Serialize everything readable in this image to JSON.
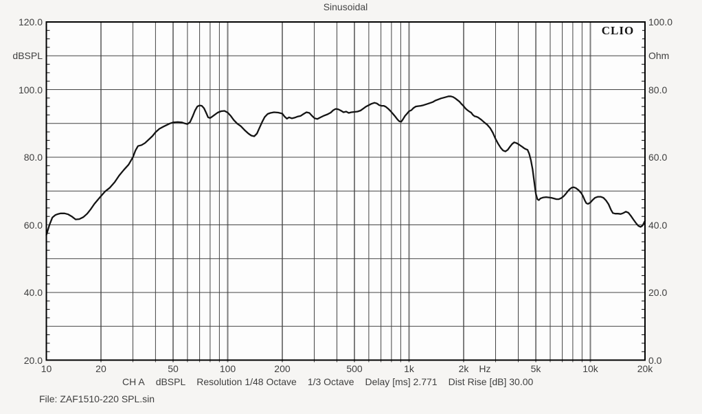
{
  "title": "Sinusoidal",
  "logo_text": "CLIO",
  "footer": {
    "segments": [
      "CH A",
      "dBSPL",
      "Resolution 1/48 Octave",
      "1/3 Octave",
      "Delay [ms] 2.771",
      "Dist Rise [dB] 30.00"
    ],
    "file_line": "File: ZAF1510-220 SPL.sin"
  },
  "chart_data": {
    "type": "line",
    "title": "Sinusoidal",
    "x_scale": "log",
    "x_range_hz": [
      10,
      20000
    ],
    "grid": true,
    "left_axis": {
      "label": "dBSPL",
      "min": 20,
      "max": 120,
      "tick_labels": [
        {
          "text": "120.0",
          "value": 120
        },
        {
          "text": "100.0",
          "value": 100
        },
        {
          "text": "80.0",
          "value": 80
        },
        {
          "text": "60.0",
          "value": 60
        },
        {
          "text": "40.0",
          "value": 40
        },
        {
          "text": "20.0",
          "value": 20
        }
      ],
      "unit_label_at_value": 110
    },
    "right_axis": {
      "label": "Ohm",
      "min": 0,
      "max": 100,
      "tick_labels": [
        {
          "text": "100.0",
          "value": 100
        },
        {
          "text": "80.0",
          "value": 80
        },
        {
          "text": "60.0",
          "value": 60
        },
        {
          "text": "40.0",
          "value": 40
        },
        {
          "text": "20.0",
          "value": 20
        },
        {
          "text": "0.0",
          "value": 0
        }
      ],
      "unit_label_at_value": 90
    },
    "x_axis_labels": [
      {
        "text": "10",
        "f": 10
      },
      {
        "text": "20",
        "f": 20
      },
      {
        "text": "50",
        "f": 50
      },
      {
        "text": "100",
        "f": 100
      },
      {
        "text": "200",
        "f": 200
      },
      {
        "text": "500",
        "f": 500
      },
      {
        "text": "1k",
        "f": 1000
      },
      {
        "text": "2k",
        "f": 2000
      },
      {
        "text": "Hz",
        "f": 2620
      },
      {
        "text": "5k",
        "f": 5000
      },
      {
        "text": "10k",
        "f": 10000
      },
      {
        "text": "20k",
        "f": 20000
      }
    ],
    "grid_major_freqs": [
      20,
      50,
      100,
      200,
      500,
      1000,
      2000,
      5000,
      10000
    ],
    "grid_minor_freqs": [
      30,
      40,
      60,
      70,
      80,
      90,
      300,
      400,
      600,
      700,
      800,
      900,
      3000,
      4000,
      6000,
      7000,
      8000,
      9000
    ],
    "grid_h_lines_db": [
      110,
      100,
      90,
      80,
      70,
      60,
      50,
      40,
      30
    ],
    "minor_tick_step_db": 2.5,
    "colors": {
      "curve": "#141414",
      "grid_major": "#7d7d7d",
      "grid_minor": "#424242",
      "border": "#000000",
      "plot_fill": "#fdfdfd",
      "text": "#3e3e3e"
    },
    "series": [
      {
        "name": "CH A dBSPL",
        "points": [
          [
            10,
            57.0
          ],
          [
            10.4,
            60.0
          ],
          [
            10.8,
            62.2
          ],
          [
            11.2,
            62.9
          ],
          [
            11.6,
            63.2
          ],
          [
            12,
            63.4
          ],
          [
            12.6,
            63.4
          ],
          [
            13.2,
            63.1
          ],
          [
            13.8,
            62.5
          ],
          [
            14.5,
            61.6
          ],
          [
            15.2,
            61.7
          ],
          [
            16,
            62.3
          ],
          [
            16.8,
            63.3
          ],
          [
            17.6,
            64.7
          ],
          [
            18.4,
            66.2
          ],
          [
            19.2,
            67.4
          ],
          [
            20,
            68.5
          ],
          [
            21,
            69.8
          ],
          [
            22.4,
            71.0
          ],
          [
            23.8,
            72.6
          ],
          [
            25.2,
            74.6
          ],
          [
            26.8,
            76.3
          ],
          [
            28.4,
            77.8
          ],
          [
            30,
            80.0
          ],
          [
            31,
            82.0
          ],
          [
            32,
            83.3
          ],
          [
            33.5,
            83.6
          ],
          [
            35,
            84.2
          ],
          [
            37,
            85.4
          ],
          [
            38.5,
            86.3
          ],
          [
            40,
            87.4
          ],
          [
            42,
            88.4
          ],
          [
            44,
            89.0
          ],
          [
            46,
            89.5
          ],
          [
            48,
            90.0
          ],
          [
            50,
            90.3
          ],
          [
            53,
            90.4
          ],
          [
            56,
            90.3
          ],
          [
            58,
            90.0
          ],
          [
            60,
            89.8
          ],
          [
            62,
            90.4
          ],
          [
            64,
            92.0
          ],
          [
            66,
            93.8
          ],
          [
            68,
            95.0
          ],
          [
            70,
            95.3
          ],
          [
            72,
            95.2
          ],
          [
            74,
            94.5
          ],
          [
            76,
            93.2
          ],
          [
            78,
            91.8
          ],
          [
            80,
            91.6
          ],
          [
            82,
            92.0
          ],
          [
            85,
            92.6
          ],
          [
            88,
            93.2
          ],
          [
            92,
            93.6
          ],
          [
            96,
            93.7
          ],
          [
            100,
            93.2
          ],
          [
            104,
            92.2
          ],
          [
            108,
            91.0
          ],
          [
            113,
            89.9
          ],
          [
            118,
            89.2
          ],
          [
            124,
            88.0
          ],
          [
            130,
            87.0
          ],
          [
            135,
            86.4
          ],
          [
            140,
            86.2
          ],
          [
            145,
            87.0
          ],
          [
            150,
            88.8
          ],
          [
            155,
            90.5
          ],
          [
            160,
            91.9
          ],
          [
            166,
            92.8
          ],
          [
            172,
            93.1
          ],
          [
            180,
            93.3
          ],
          [
            190,
            93.2
          ],
          [
            200,
            92.9
          ],
          [
            206,
            92.0
          ],
          [
            212,
            91.4
          ],
          [
            218,
            91.8
          ],
          [
            226,
            91.5
          ],
          [
            234,
            91.7
          ],
          [
            242,
            92.0
          ],
          [
            252,
            92.2
          ],
          [
            262,
            92.8
          ],
          [
            272,
            93.3
          ],
          [
            282,
            93.1
          ],
          [
            292,
            92.2
          ],
          [
            302,
            91.5
          ],
          [
            312,
            91.3
          ],
          [
            325,
            91.8
          ],
          [
            340,
            92.3
          ],
          [
            355,
            92.7
          ],
          [
            370,
            93.2
          ],
          [
            382,
            93.9
          ],
          [
            394,
            94.3
          ],
          [
            406,
            94.2
          ],
          [
            420,
            93.8
          ],
          [
            435,
            93.3
          ],
          [
            450,
            93.5
          ],
          [
            465,
            93.1
          ],
          [
            480,
            93.3
          ],
          [
            500,
            93.4
          ],
          [
            520,
            93.5
          ],
          [
            540,
            93.8
          ],
          [
            560,
            94.4
          ],
          [
            580,
            95.0
          ],
          [
            600,
            95.4
          ],
          [
            620,
            95.8
          ],
          [
            645,
            96.1
          ],
          [
            665,
            95.9
          ],
          [
            685,
            95.4
          ],
          [
            705,
            95.2
          ],
          [
            725,
            95.2
          ],
          [
            745,
            94.9
          ],
          [
            765,
            94.4
          ],
          [
            785,
            93.8
          ],
          [
            810,
            93.0
          ],
          [
            840,
            92.0
          ],
          [
            865,
            91.1
          ],
          [
            885,
            90.6
          ],
          [
            905,
            90.5
          ],
          [
            925,
            91.2
          ],
          [
            950,
            92.2
          ],
          [
            975,
            92.9
          ],
          [
            1000,
            93.6
          ],
          [
            1030,
            93.9
          ],
          [
            1060,
            94.6
          ],
          [
            1090,
            95.0
          ],
          [
            1120,
            95.1
          ],
          [
            1160,
            95.2
          ],
          [
            1200,
            95.4
          ],
          [
            1250,
            95.7
          ],
          [
            1300,
            96.0
          ],
          [
            1350,
            96.3
          ],
          [
            1400,
            96.8
          ],
          [
            1450,
            97.1
          ],
          [
            1500,
            97.4
          ],
          [
            1550,
            97.6
          ],
          [
            1600,
            97.8
          ],
          [
            1650,
            98.0
          ],
          [
            1700,
            98.0
          ],
          [
            1750,
            97.8
          ],
          [
            1800,
            97.4
          ],
          [
            1850,
            96.9
          ],
          [
            1900,
            96.4
          ],
          [
            1950,
            95.7
          ],
          [
            2000,
            95.1
          ],
          [
            2050,
            94.4
          ],
          [
            2100,
            93.9
          ],
          [
            2150,
            93.5
          ],
          [
            2200,
            93.2
          ],
          [
            2250,
            92.5
          ],
          [
            2300,
            92.1
          ],
          [
            2350,
            92.0
          ],
          [
            2400,
            91.8
          ],
          [
            2500,
            91.1
          ],
          [
            2600,
            90.3
          ],
          [
            2700,
            89.6
          ],
          [
            2800,
            88.6
          ],
          [
            2900,
            87.2
          ],
          [
            3000,
            85.4
          ],
          [
            3100,
            84.0
          ],
          [
            3200,
            82.8
          ],
          [
            3300,
            82.0
          ],
          [
            3400,
            81.7
          ],
          [
            3500,
            82.2
          ],
          [
            3600,
            83.1
          ],
          [
            3700,
            83.9
          ],
          [
            3800,
            84.4
          ],
          [
            3900,
            84.2
          ],
          [
            4000,
            83.9
          ],
          [
            4100,
            83.5
          ],
          [
            4200,
            83.1
          ],
          [
            4300,
            82.7
          ],
          [
            4400,
            82.4
          ],
          [
            4500,
            82.2
          ],
          [
            4600,
            81.0
          ],
          [
            4700,
            79.0
          ],
          [
            4800,
            76.4
          ],
          [
            4900,
            72.8
          ],
          [
            5000,
            69.2
          ],
          [
            5100,
            67.6
          ],
          [
            5200,
            67.3
          ],
          [
            5300,
            67.8
          ],
          [
            5500,
            68.1
          ],
          [
            5700,
            68.2
          ],
          [
            5900,
            68.1
          ],
          [
            6100,
            68.0
          ],
          [
            6300,
            67.8
          ],
          [
            6500,
            67.6
          ],
          [
            6700,
            67.6
          ],
          [
            6900,
            67.9
          ],
          [
            7100,
            68.4
          ],
          [
            7300,
            69.1
          ],
          [
            7500,
            69.9
          ],
          [
            7700,
            70.6
          ],
          [
            7900,
            71.0
          ],
          [
            8100,
            71.1
          ],
          [
            8300,
            70.9
          ],
          [
            8600,
            70.3
          ],
          [
            8900,
            69.4
          ],
          [
            9100,
            68.5
          ],
          [
            9300,
            67.3
          ],
          [
            9500,
            66.4
          ],
          [
            9700,
            66.2
          ],
          [
            10000,
            66.6
          ],
          [
            10300,
            67.4
          ],
          [
            10600,
            68.0
          ],
          [
            11000,
            68.3
          ],
          [
            11400,
            68.3
          ],
          [
            11800,
            68.0
          ],
          [
            12200,
            67.2
          ],
          [
            12600,
            66.1
          ],
          [
            13000,
            64.4
          ],
          [
            13300,
            63.5
          ],
          [
            13700,
            63.3
          ],
          [
            14200,
            63.3
          ],
          [
            14700,
            63.2
          ],
          [
            15200,
            63.5
          ],
          [
            15700,
            63.9
          ],
          [
            16200,
            63.6
          ],
          [
            16700,
            62.7
          ],
          [
            17300,
            61.5
          ],
          [
            17900,
            60.4
          ],
          [
            18400,
            59.7
          ],
          [
            18900,
            59.4
          ],
          [
            19400,
            59.8
          ],
          [
            20000,
            61.2
          ]
        ]
      }
    ]
  }
}
